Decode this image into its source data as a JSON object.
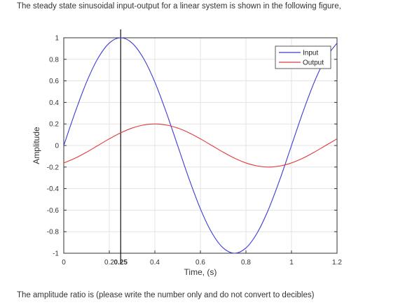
{
  "question": {
    "text": "The steady state sinusoidal input-output for a linear system is shown in the following figure,"
  },
  "answer_prompt": {
    "text": "The amplitude ratio is (please write the number only and do not convert to decibles)"
  },
  "chart_data": {
    "type": "line",
    "title": "",
    "xlabel": "Time, (s)",
    "ylabel": "Amplitude",
    "xlim": [
      0,
      1.2
    ],
    "ylim": [
      -1,
      1
    ],
    "grid": true,
    "legend_position": "top-right",
    "x_ticks": [
      {
        "value": 0,
        "label": "0"
      },
      {
        "value": 0.2,
        "label": "0.2"
      },
      {
        "value": 0.25,
        "label": "0.25"
      },
      {
        "value": 0.4,
        "label": "0.4"
      },
      {
        "value": 0.6,
        "label": "0.6"
      },
      {
        "value": 0.8,
        "label": "0.8"
      },
      {
        "value": 1.0,
        "label": "1"
      },
      {
        "value": 1.2,
        "label": "1.2"
      }
    ],
    "y_ticks": [
      {
        "value": 1,
        "label": "1"
      },
      {
        "value": 0.8,
        "label": "0.8"
      },
      {
        "value": 0.6,
        "label": "0.6"
      },
      {
        "value": 0.4,
        "label": "0.4"
      },
      {
        "value": 0.2,
        "label": "0.2"
      },
      {
        "value": 0,
        "label": "0"
      },
      {
        "value": -0.2,
        "label": "-0.2"
      },
      {
        "value": -0.4,
        "label": "-0.4"
      },
      {
        "value": -0.6,
        "label": "-0.6"
      },
      {
        "value": -0.8,
        "label": "-0.8"
      },
      {
        "value": -1,
        "label": "-1"
      }
    ],
    "marker_line_x": 0.25,
    "series": [
      {
        "name": "Input",
        "color": "#3b3bd6",
        "x": [
          0,
          0.05,
          0.1,
          0.15,
          0.2,
          0.25,
          0.3,
          0.35,
          0.4,
          0.45,
          0.5,
          0.55,
          0.6,
          0.65,
          0.7,
          0.75,
          0.8,
          0.85,
          0.9,
          0.95,
          1.0,
          1.05,
          1.1,
          1.15,
          1.2
        ],
        "y": [
          0,
          0.309,
          0.588,
          0.809,
          0.951,
          1.0,
          0.951,
          0.809,
          0.588,
          0.309,
          0,
          -0.309,
          -0.588,
          -0.809,
          -0.951,
          -1.0,
          -0.951,
          -0.809,
          -0.588,
          -0.309,
          0,
          0.309,
          0.588,
          0.809,
          0.951
        ]
      },
      {
        "name": "Output",
        "color": "#e03a3a",
        "x": [
          0,
          0.05,
          0.1,
          0.15,
          0.2,
          0.25,
          0.3,
          0.35,
          0.4,
          0.45,
          0.5,
          0.55,
          0.6,
          0.65,
          0.7,
          0.75,
          0.8,
          0.85,
          0.9,
          0.95,
          1.0,
          1.05,
          1.1,
          1.15,
          1.2
        ],
        "y": [
          -0.162,
          -0.118,
          -0.062,
          0,
          0.062,
          0.118,
          0.162,
          0.19,
          0.2,
          0.19,
          0.162,
          0.118,
          0.062,
          0,
          -0.062,
          -0.118,
          -0.162,
          -0.19,
          -0.2,
          -0.19,
          -0.162,
          -0.118,
          -0.062,
          0,
          0.062
        ]
      }
    ]
  }
}
